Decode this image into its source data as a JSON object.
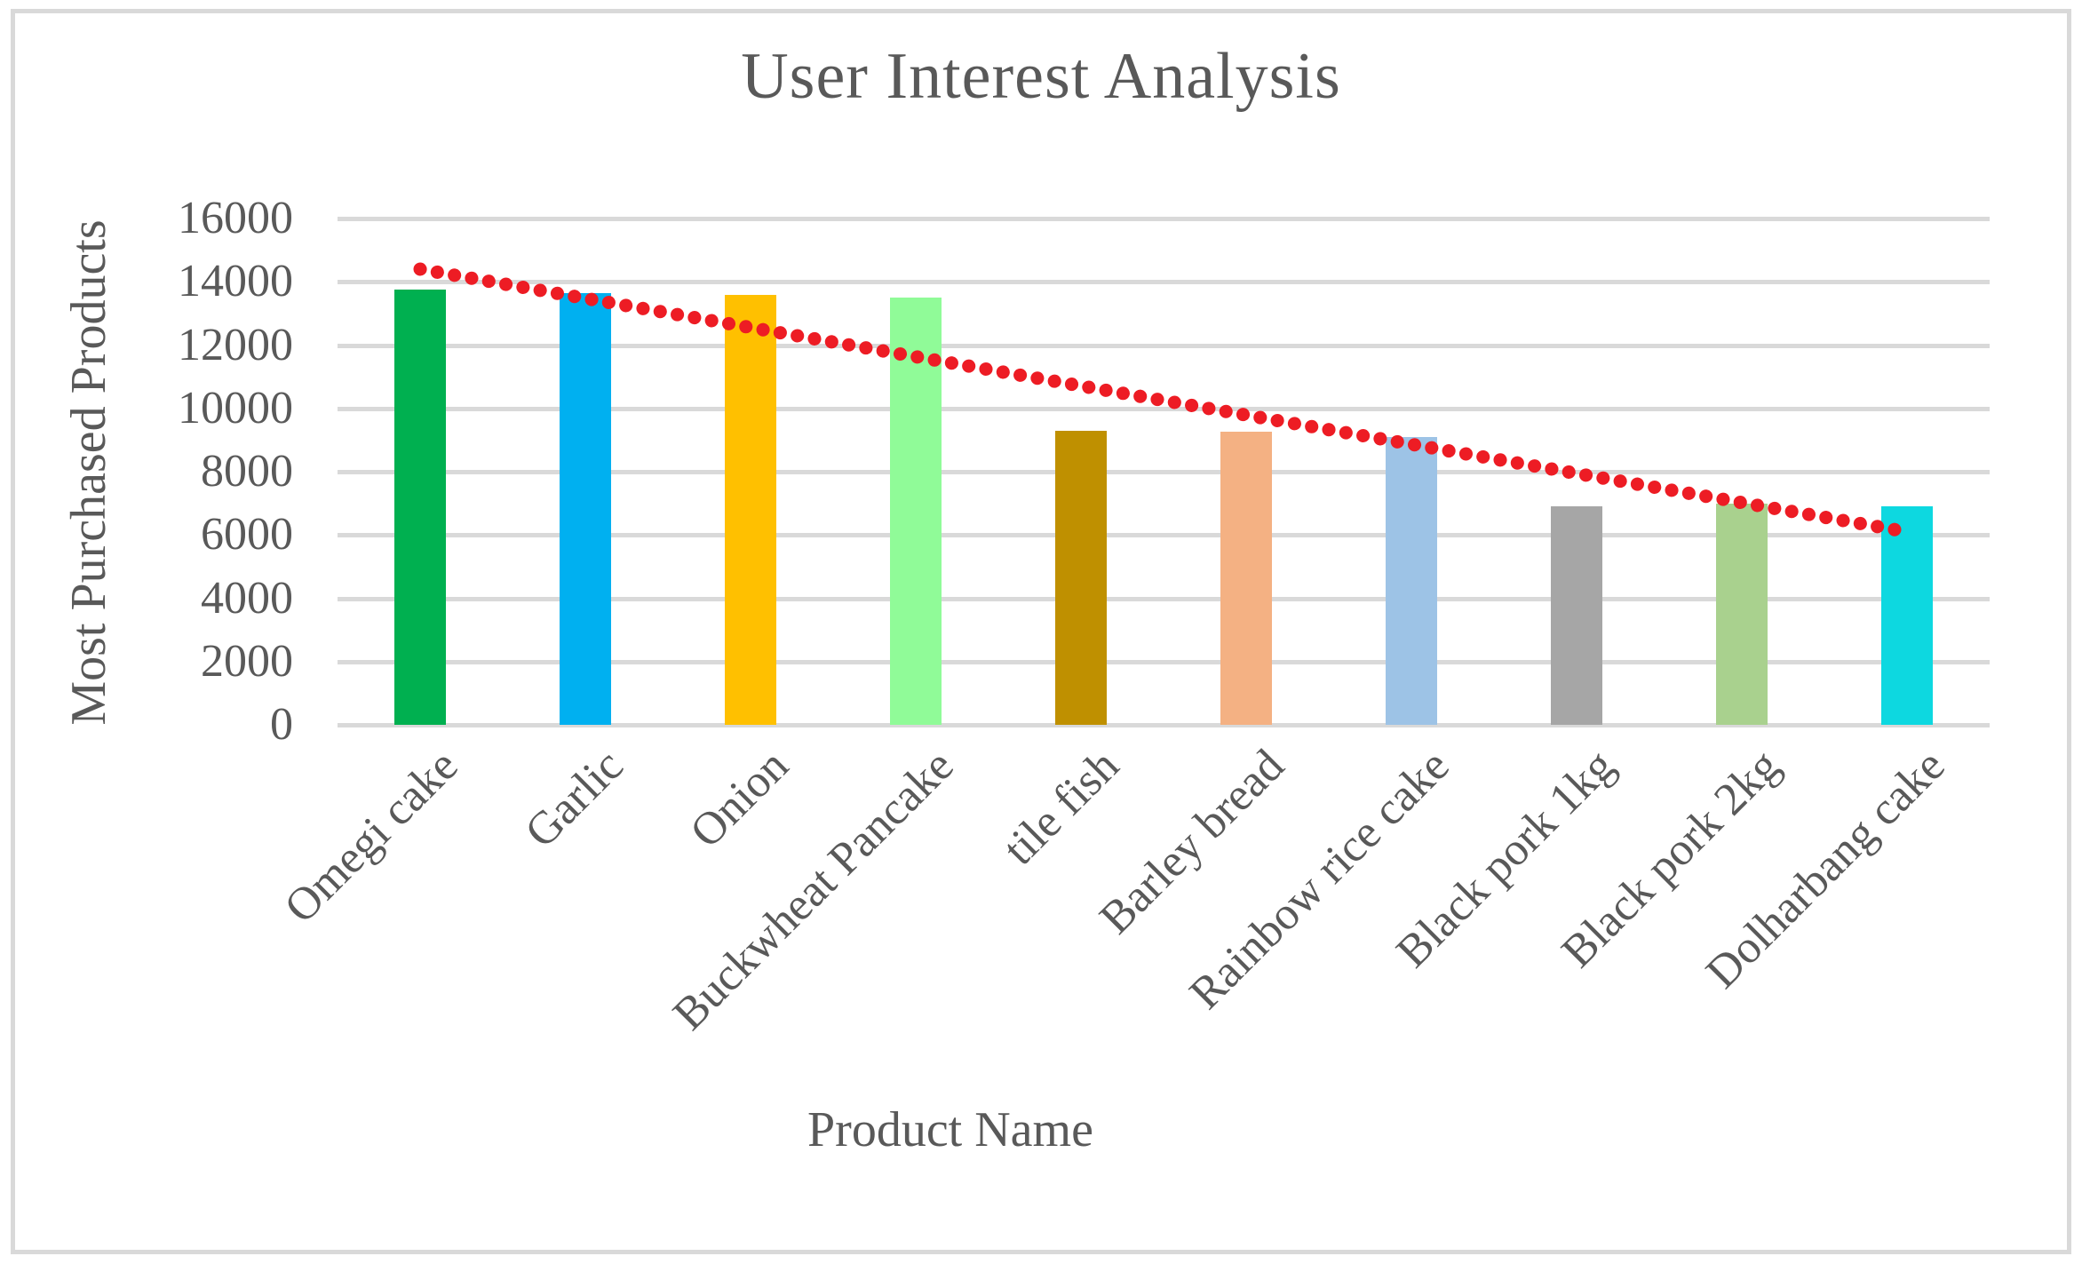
{
  "chart_data": {
    "type": "bar",
    "title": "User Interest Analysis",
    "xlabel": "Product Name",
    "ylabel": "Most Purchased Products",
    "categories": [
      "Omegi cake",
      "Garlic",
      "Onion",
      "Buckwheat Pancake",
      "tile fish",
      "Barley bread",
      "Rainbow rice cake",
      "Black pork 1kg",
      "Black pork 2kg",
      "Dolharbang cake"
    ],
    "values": [
      13750,
      13650,
      13600,
      13500,
      9300,
      9250,
      9100,
      6900,
      7000,
      6900
    ],
    "bar_colors": [
      "#00B050",
      "#00B0F0",
      "#FFC000",
      "#90FB98",
      "#BF9000",
      "#F4B183",
      "#9DC3E6",
      "#A6A6A6",
      "#A9D18E",
      "#0DD8E0"
    ],
    "ylim": [
      0,
      16000
    ],
    "yticks": [
      0,
      2000,
      4000,
      6000,
      8000,
      10000,
      12000,
      14000,
      16000
    ],
    "grid": true,
    "legend": "none",
    "trendline": {
      "type": "linear",
      "style": "dotted",
      "color": "#ED1C24",
      "start_value": 14400,
      "end_value": 6100
    }
  },
  "styles": {
    "text_color": "#595959",
    "grid_color": "#D9D9D9",
    "frame_border_color": "#D9D9D9",
    "background": "#FFFFFF"
  }
}
